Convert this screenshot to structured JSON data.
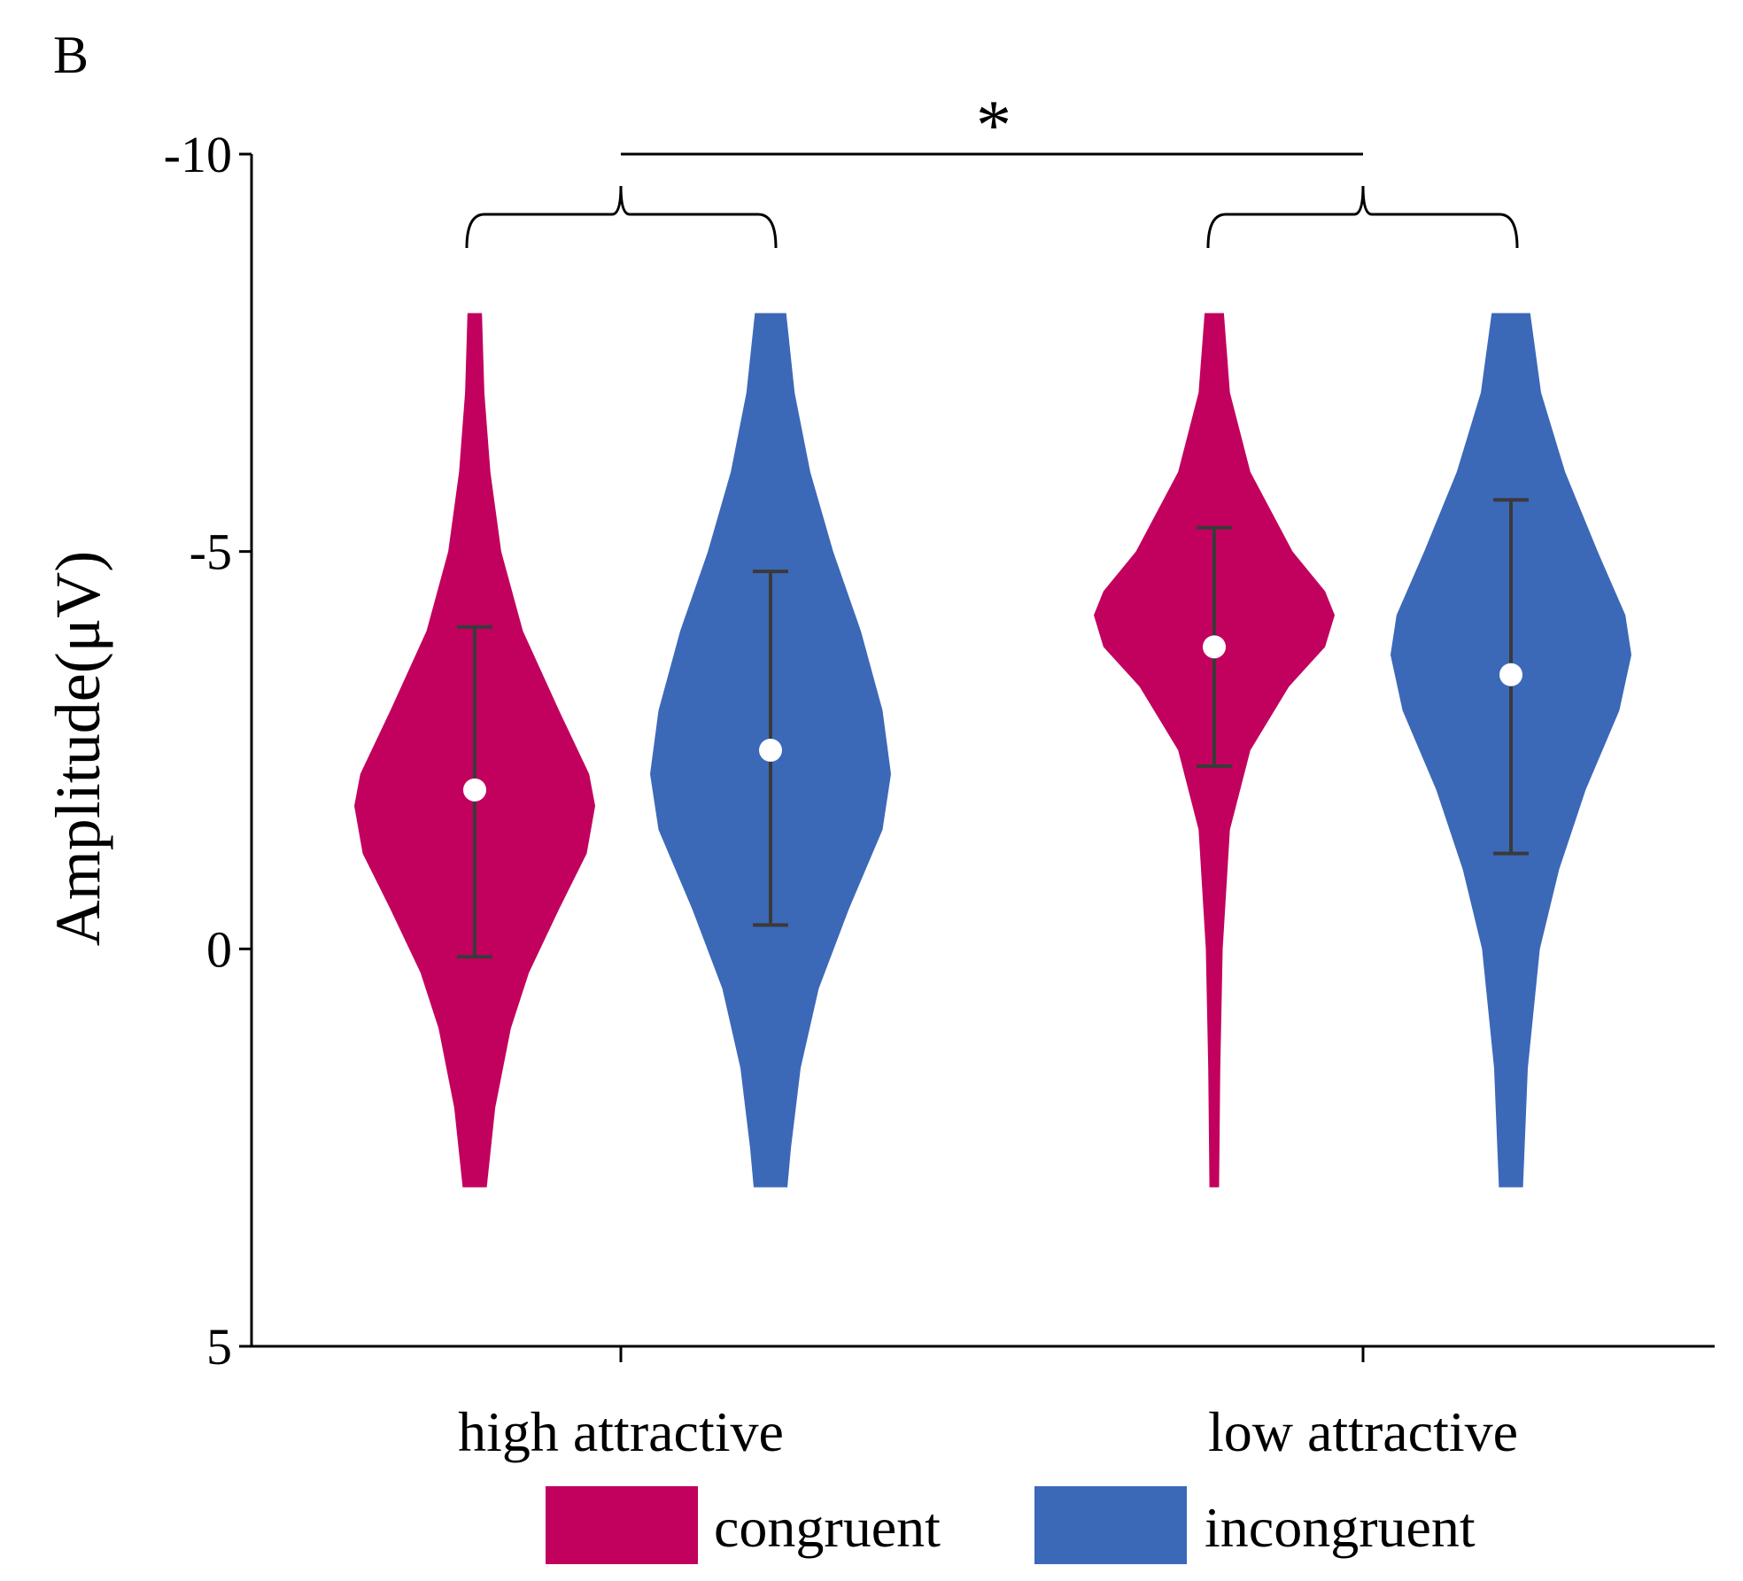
{
  "panel_label": "B",
  "significance_label": "*",
  "chart_data": {
    "type": "violin",
    "ylabel": "Amplitude(μV)",
    "xlabel": "",
    "ylim": [
      -10,
      5
    ],
    "y_inverted": true,
    "yticks": [
      -10,
      -5,
      0,
      5
    ],
    "ytick_labels": [
      "-10",
      "-5",
      "0",
      "5"
    ],
    "categories": [
      "high attractive",
      "low attractive"
    ],
    "grid": false,
    "legend": {
      "placement": "bottom",
      "entries": [
        "congruent",
        "incongruent"
      ]
    },
    "colors": {
      "congruent": "#C2005E",
      "incongruent": "#3C68B8",
      "error_bar": "#3a3a3a"
    },
    "violins": [
      {
        "category": "high attractive",
        "series": "congruent",
        "mean": -2.0,
        "err_low": -4.05,
        "err_high": 0.1,
        "density": [
          [
            -8,
            0.06
          ],
          [
            -7,
            0.08
          ],
          [
            -6,
            0.13
          ],
          [
            -5,
            0.22
          ],
          [
            -4,
            0.4
          ],
          [
            -3,
            0.7
          ],
          [
            -2.2,
            0.95
          ],
          [
            -1.8,
            1
          ],
          [
            -1.2,
            0.93
          ],
          [
            -0.5,
            0.7
          ],
          [
            0.3,
            0.45
          ],
          [
            1,
            0.3
          ],
          [
            2,
            0.17
          ],
          [
            3,
            0.1
          ]
        ]
      },
      {
        "category": "high attractive",
        "series": "incongruent",
        "mean": -2.5,
        "err_low": -4.75,
        "err_high": -0.3,
        "density": [
          [
            -8,
            0.13
          ],
          [
            -7,
            0.2
          ],
          [
            -6,
            0.33
          ],
          [
            -5,
            0.52
          ],
          [
            -4,
            0.75
          ],
          [
            -3,
            0.93
          ],
          [
            -2.2,
            1
          ],
          [
            -1.5,
            0.93
          ],
          [
            -0.5,
            0.65
          ],
          [
            0.5,
            0.4
          ],
          [
            1.5,
            0.25
          ],
          [
            2.5,
            0.17
          ],
          [
            3,
            0.14
          ]
        ]
      },
      {
        "category": "low attractive",
        "series": "congruent",
        "mean": -3.8,
        "err_low": -5.3,
        "err_high": -2.3,
        "density": [
          [
            -8,
            0.08
          ],
          [
            -7,
            0.13
          ],
          [
            -6,
            0.3
          ],
          [
            -5,
            0.65
          ],
          [
            -4.5,
            0.92
          ],
          [
            -4.2,
            1
          ],
          [
            -3.8,
            0.92
          ],
          [
            -3.3,
            0.62
          ],
          [
            -2.5,
            0.3
          ],
          [
            -1.5,
            0.13
          ],
          [
            0,
            0.07
          ],
          [
            1.5,
            0.05
          ],
          [
            3,
            0.04
          ]
        ]
      },
      {
        "category": "low attractive",
        "series": "incongruent",
        "mean": -3.45,
        "err_low": -5.65,
        "err_high": -1.2,
        "density": [
          [
            -8,
            0.16
          ],
          [
            -7,
            0.25
          ],
          [
            -6,
            0.45
          ],
          [
            -5,
            0.72
          ],
          [
            -4.2,
            0.95
          ],
          [
            -3.7,
            1
          ],
          [
            -3,
            0.9
          ],
          [
            -2,
            0.62
          ],
          [
            -1,
            0.4
          ],
          [
            0,
            0.24
          ],
          [
            1.5,
            0.14
          ],
          [
            3,
            0.1
          ]
        ]
      }
    ],
    "annotations": [
      {
        "text": "*",
        "between": [
          "high attractive",
          "low attractive"
        ]
      }
    ]
  }
}
